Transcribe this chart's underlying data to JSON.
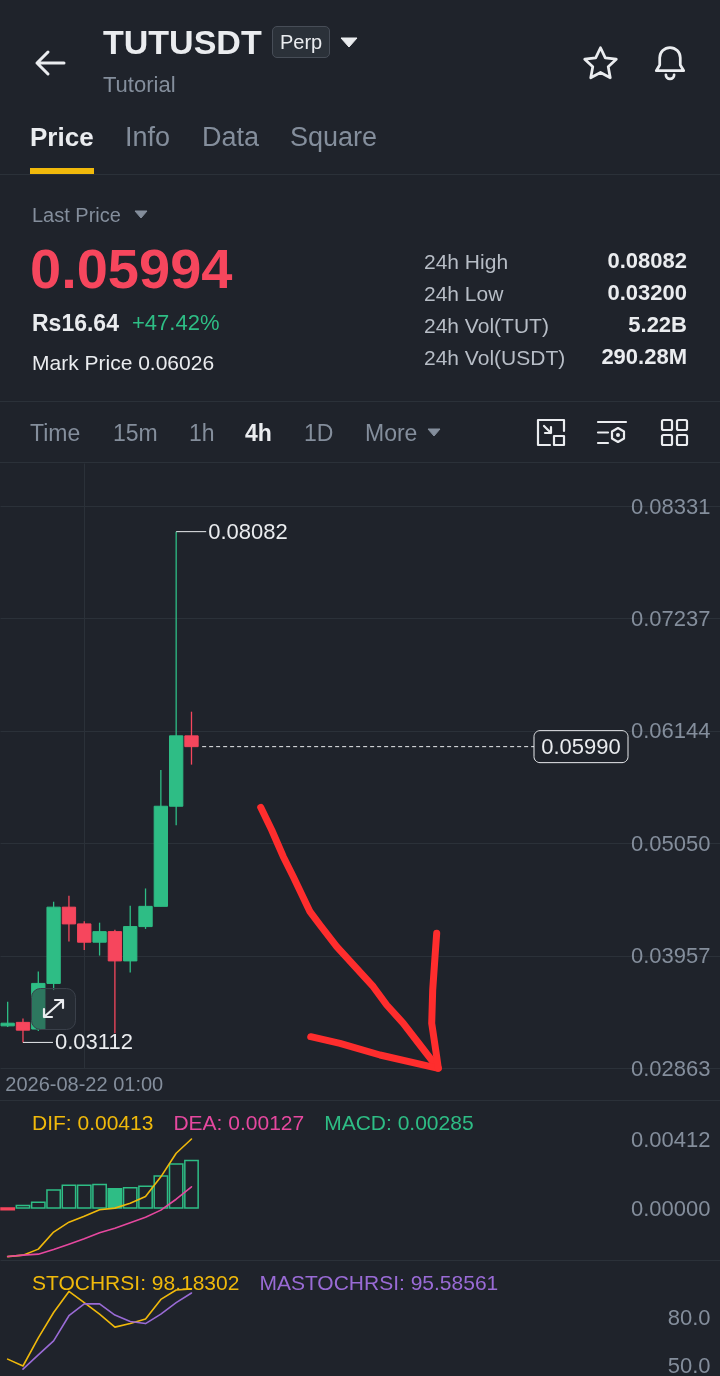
{
  "chart_data": [
    {
      "type": "other",
      "title": "TUTUSDT",
      "subtitle": "Tutorial",
      "annotations": [
        "Perp",
        "Price",
        "Info",
        "Data",
        "Square",
        "Last Price",
        "0.05994",
        "Rs16.64",
        "+47.42%",
        "Mark Price 0.06026",
        "24h High",
        "0.08082",
        "24h Low",
        "0.03200",
        "24h Vol(TUT)",
        "5.22B",
        "24h Vol(USDT)",
        "290.28M",
        "Time",
        "15m",
        "1h",
        "4h",
        "1D",
        "More"
      ]
    },
    {
      "type": "candlestick",
      "categories": [
        null,
        null,
        null,
        null,
        null,
        "2026-08-22 01:00",
        null,
        null,
        null,
        null,
        null,
        null,
        null,
        null,
        null,
        null,
        null,
        null,
        null,
        null,
        null,
        null,
        null,
        null,
        null,
        null,
        null,
        null,
        null,
        null,
        null,
        null,
        null,
        null,
        null,
        null,
        null,
        null,
        null,
        null,
        null,
        null,
        null,
        null,
        null,
        null,
        null
      ],
      "ohlc": [
        [
          0.03273,
          0.03508,
          0.03261,
          0.03299
        ],
        [
          0.03307,
          0.03345,
          0.03112,
          0.03231
        ],
        [
          0.03242,
          0.03803,
          0.03224,
          0.03686
        ],
        [
          0.03686,
          0.04481,
          0.03621,
          0.04428
        ],
        [
          0.04428,
          0.04538,
          0.04095,
          0.04265
        ],
        [
          0.04265,
          0.04292,
          0.04012,
          0.04087
        ],
        [
          0.04087,
          0.04277,
          0.03957,
          0.0419
        ],
        [
          0.0419,
          0.04209,
          0.032,
          0.03905
        ],
        [
          0.03905,
          0.04443,
          0.03792,
          0.04239
        ],
        [
          0.04239,
          0.0461,
          0.04216,
          0.04436
        ],
        [
          0.04436,
          0.05762,
          0.04436,
          0.0541
        ],
        [
          0.0541,
          0.08082,
          0.05224,
          0.06095
        ],
        [
          0.06095,
          0.0633,
          0.05815,
          0.0599
        ],
        null,
        null,
        null,
        null,
        null,
        null,
        null,
        null,
        null,
        null,
        null,
        null,
        null,
        null,
        null,
        null,
        null,
        null,
        null,
        null,
        null,
        null,
        null,
        null,
        null,
        null,
        null,
        null,
        null,
        null,
        null,
        null,
        null,
        null
      ],
      "colors": [
        "#2ebd85",
        "#f6465d",
        "#2ebd85",
        "#2ebd85",
        "#f6465d",
        "#f6465d",
        "#2ebd85",
        "#f6465d",
        "#2ebd85",
        "#2ebd85",
        "#2ebd85",
        "#2ebd85",
        "#f6465d",
        null,
        null,
        null,
        null,
        null,
        null,
        null,
        null,
        null,
        null,
        null,
        null,
        null,
        null,
        null,
        null,
        null,
        null,
        null,
        null,
        null,
        null,
        null,
        null,
        null,
        null,
        null,
        null,
        null,
        null,
        null,
        null,
        null,
        null
      ],
      "ylim": [
        0.02863,
        0.0875
      ],
      "yticks": [
        0.02863,
        0.03957,
        {
          "value": 0.0505,
          "label": "0.05050"
        },
        0.06144,
        0.07237,
        0.08331
      ],
      "grid": true,
      "ref_lines": [
        {
          "axis": "y",
          "value": 0.0599,
          "label": "0.05990",
          "color": "#eaecef",
          "line_style": "dashed"
        }
      ],
      "annotations": [
        "0.08082",
        "0.03112"
      ]
    },
    {
      "type": "line",
      "categories": [
        null,
        null,
        null,
        null,
        null,
        null,
        null,
        null,
        null,
        null,
        null,
        null,
        null,
        null,
        null,
        null,
        null,
        null,
        null,
        null,
        null,
        null,
        null,
        null,
        null,
        null,
        null,
        null,
        null,
        null,
        null,
        null,
        null,
        null,
        null,
        null,
        null,
        null,
        null,
        null,
        null,
        null,
        null,
        null,
        null,
        null,
        null
      ],
      "series": [
        {
          "name": "DIF: 0.00413",
          "color": "#f0b90b",
          "values": [
            -0.0029,
            -0.00281,
            -0.00245,
            -0.00143,
            -0.00084,
            -0.00049,
            -0.0001,
            0.0,
            0.00029,
            0.00069,
            0.00187,
            0.00328,
            0.00413,
            null,
            null,
            null,
            null,
            null,
            null,
            null,
            null,
            null,
            null,
            null,
            null,
            null,
            null,
            null,
            null,
            null,
            null,
            null,
            null,
            null,
            null,
            null,
            null,
            null,
            null,
            null,
            null,
            null,
            null,
            null,
            null,
            null,
            null
          ]
        },
        {
          "name": "DEA: 0.00127",
          "color": "#e6489f",
          "values": [
            -0.00289,
            -0.00281,
            -0.00275,
            -0.00247,
            -0.00216,
            -0.00183,
            -0.00147,
            -0.0012,
            -0.00088,
            -0.00055,
            -0.00012,
            0.00053,
            0.00127,
            null,
            null,
            null,
            null,
            null,
            null,
            null,
            null,
            null,
            null,
            null,
            null,
            null,
            null,
            null,
            null,
            null,
            null,
            null,
            null,
            null,
            null,
            null,
            null,
            null,
            null,
            null,
            null,
            null,
            null,
            null,
            null,
            null,
            null
          ]
        },
        {
          "name": "MACD: 0.00285",
          "type": "bar",
          "color": "#2ebd85",
          "colors": [
            "#f6465d",
            "#2ebd85",
            "#2ebd85",
            "#2ebd85",
            "#2ebd85",
            "#2ebd85",
            "#2ebd85",
            "#2ebd85",
            "#2ebd85",
            "#2ebd85",
            "#2ebd85",
            "#2ebd85",
            "#2ebd85",
            null,
            null,
            null,
            null,
            null,
            null,
            null,
            null,
            null,
            null,
            null,
            null,
            null,
            null,
            null,
            null,
            null,
            null,
            null,
            null,
            null,
            null,
            null,
            null,
            null,
            null,
            null,
            null,
            null,
            null,
            null,
            null,
            null,
            null
          ],
          "values": [
            -0.0001,
            0.00016,
            0.00035,
            0.00108,
            0.00137,
            0.00137,
            0.00141,
            0.00116,
            0.00122,
            0.00131,
            0.00192,
            0.00263,
            0.00285,
            null,
            null,
            null,
            null,
            null,
            null,
            null,
            null,
            null,
            null,
            null,
            null,
            null,
            null,
            null,
            null,
            null,
            null,
            null,
            null,
            null,
            null,
            null,
            null,
            null,
            null,
            null,
            null,
            null,
            null,
            null,
            null,
            null,
            null
          ]
        }
      ],
      "ylim": [
        -0.0031,
        0.0064
      ],
      "yticks": [
        {
          "value": 0,
          "label": "0.00000"
        },
        0.00412
      ],
      "legend": "top left",
      "tick_labels": "y"
    },
    {
      "type": "line",
      "categories": [
        null,
        null,
        null,
        null,
        null,
        null,
        null,
        null,
        null,
        null,
        null,
        null,
        null,
        null,
        null,
        null,
        null,
        null,
        null,
        null,
        null,
        null,
        null,
        null,
        null,
        null,
        null,
        null,
        null,
        null,
        null,
        null,
        null,
        null,
        null,
        null,
        null,
        null,
        null,
        null,
        null,
        null,
        null,
        null,
        null,
        null,
        null
      ],
      "series": [
        {
          "name": "STOCHRSI: 98.18302",
          "color": "#f0b90b",
          "values": [
            54.3,
            50,
            67.6,
            83.4,
            96.6,
            89.6,
            82.4,
            74.3,
            76.5,
            79.4,
            91.6,
            97.5,
            98.18302,
            null,
            null,
            null,
            null,
            null,
            null,
            null,
            null,
            null,
            null,
            null,
            null,
            null,
            null,
            null,
            null,
            null,
            null,
            null,
            null,
            null,
            null,
            null,
            null,
            null,
            null,
            null,
            null,
            null,
            null,
            null,
            null,
            null,
            null
          ]
        },
        {
          "name": "MASTOCHRSI: 95.58561",
          "color": "#9a6bd6",
          "values": [
            null,
            48,
            56.9,
            65.7,
            81.4,
            88.8,
            88.8,
            81.8,
            77.8,
            76.5,
            82.4,
            89.6,
            95.58561,
            null,
            null,
            null,
            null,
            null,
            null,
            null,
            null,
            null,
            null,
            null,
            null,
            null,
            null,
            null,
            null,
            null,
            null,
            null,
            null,
            null,
            null,
            null,
            null,
            null,
            null,
            null,
            null,
            null,
            null,
            null,
            null,
            null,
            null
          ]
        }
      ],
      "ylim": [
        43.75,
        115.6
      ],
      "yticks": [
        {
          "value": 50,
          "label": "50.0"
        },
        {
          "value": 80,
          "label": "80.0"
        }
      ],
      "legend": "top left",
      "tick_labels": "y"
    }
  ]
}
